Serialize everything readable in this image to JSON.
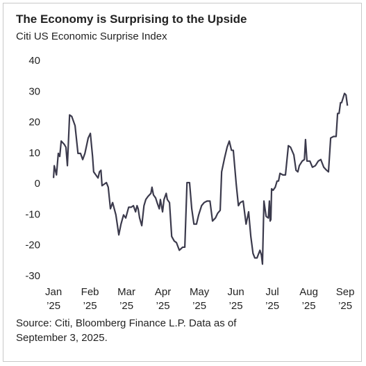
{
  "chart_data": {
    "type": "line",
    "title": "The Economy is Surprising to the Upside",
    "subtitle": "Citi US Economic Surprise Index",
    "source": "Source: Citi, Bloomberg Finance L.P. Data as of September 3, 2025.",
    "xlim": [
      -0.04,
      8.15
    ],
    "xticks": [
      {
        "value": 0,
        "label": "Jan ’25"
      },
      {
        "value": 1,
        "label": "Feb ’25"
      },
      {
        "value": 2,
        "label": "Mar ’25"
      },
      {
        "value": 3,
        "label": "Apr ’25"
      },
      {
        "value": 4,
        "label": "May ’25"
      },
      {
        "value": 5,
        "label": "Jun ’25"
      },
      {
        "value": 6,
        "label": "Jul ’25"
      },
      {
        "value": 7,
        "label": "Aug ’25"
      },
      {
        "value": 8,
        "label": "Sep ’25"
      }
    ],
    "ylim": [
      -30,
      40
    ],
    "yticks": [
      -30,
      -20,
      -10,
      0,
      10,
      20,
      30,
      40
    ],
    "grid": false,
    "series": [
      {
        "color": "#3b3a4c",
        "x": [
          0.0,
          0.02,
          0.08,
          0.13,
          0.17,
          0.21,
          0.29,
          0.34,
          0.38,
          0.44,
          0.5,
          0.59,
          0.67,
          0.74,
          0.8,
          0.86,
          0.95,
          1.01,
          1.07,
          1.1,
          1.16,
          1.22,
          1.26,
          1.3,
          1.33,
          1.39,
          1.45,
          1.5,
          1.56,
          1.62,
          1.71,
          1.79,
          1.85,
          1.92,
          1.98,
          2.06,
          2.13,
          2.19,
          2.25,
          2.29,
          2.32,
          2.36,
          2.42,
          2.48,
          2.53,
          2.59,
          2.67,
          2.7,
          2.74,
          2.8,
          2.84,
          2.9,
          2.93,
          2.99,
          3.03,
          3.09,
          3.12,
          3.18,
          3.24,
          3.31,
          3.37,
          3.45,
          3.54,
          3.6,
          3.66,
          3.73,
          3.79,
          3.85,
          3.92,
          3.98,
          4.06,
          4.13,
          4.21,
          4.29,
          4.36,
          4.44,
          4.5,
          4.57,
          4.61,
          4.69,
          4.76,
          4.82,
          4.88,
          4.93,
          5.01,
          5.07,
          5.12,
          5.2,
          5.28,
          5.35,
          5.41,
          5.47,
          5.52,
          5.58,
          5.66,
          5.7,
          5.73,
          5.77,
          5.83,
          5.89,
          5.92,
          5.94,
          5.96,
          5.98,
          6.02,
          6.08,
          6.13,
          6.17,
          6.21,
          6.29,
          6.36,
          6.44,
          6.5,
          6.59,
          6.65,
          6.7,
          6.74,
          6.82,
          6.88,
          6.91,
          6.95,
          7.03,
          7.1,
          7.18,
          7.26,
          7.33,
          7.41,
          7.49,
          7.54,
          7.6,
          7.68,
          7.75,
          7.79,
          7.83,
          7.87,
          7.9,
          7.98,
          8.02,
          8.06
        ],
        "values": [
          2,
          6,
          3,
          10,
          9,
          14,
          13,
          12,
          6,
          22.5,
          22,
          19,
          10,
          10,
          8,
          10,
          15,
          16.5,
          9,
          4,
          3,
          2,
          4,
          4.5,
          -0.5,
          0,
          0.5,
          -1,
          -8,
          -6,
          -10,
          -16.5,
          -13,
          -10,
          -11,
          -7.5,
          -7.5,
          -7,
          -9,
          -7,
          -8,
          -11,
          -13.5,
          -7,
          -5,
          -4,
          -3,
          -1,
          -3.5,
          -4.5,
          -6,
          -8,
          -5,
          -9,
          -5,
          -3,
          -5,
          -6,
          -17,
          -18.5,
          -19,
          -21.5,
          -20.5,
          -20.5,
          0.5,
          0.5,
          -8,
          -13,
          -13,
          -10,
          -7,
          -6,
          -5.5,
          -5.5,
          -12,
          -11,
          -9.5,
          -8.5,
          4,
          8.5,
          12,
          14,
          11,
          11,
          0,
          -7,
          -6,
          -5.5,
          -13,
          -9,
          -17,
          -22.5,
          -24,
          -24,
          -21.5,
          -23,
          -26,
          -5.5,
          -10.5,
          -11,
          -5.5,
          -12,
          -11.5,
          -1.5,
          -2,
          -1,
          1,
          1,
          3.5,
          3,
          3,
          12.5,
          12,
          9.5,
          4.5,
          4,
          6,
          7.5,
          8,
          14.5,
          7.5,
          7.5,
          5.5,
          6,
          7.5,
          8,
          5.5,
          4.5,
          4,
          15,
          15.5,
          15.5,
          23,
          23,
          26.5,
          26.5,
          29.5,
          29,
          25.5
        ]
      }
    ]
  }
}
